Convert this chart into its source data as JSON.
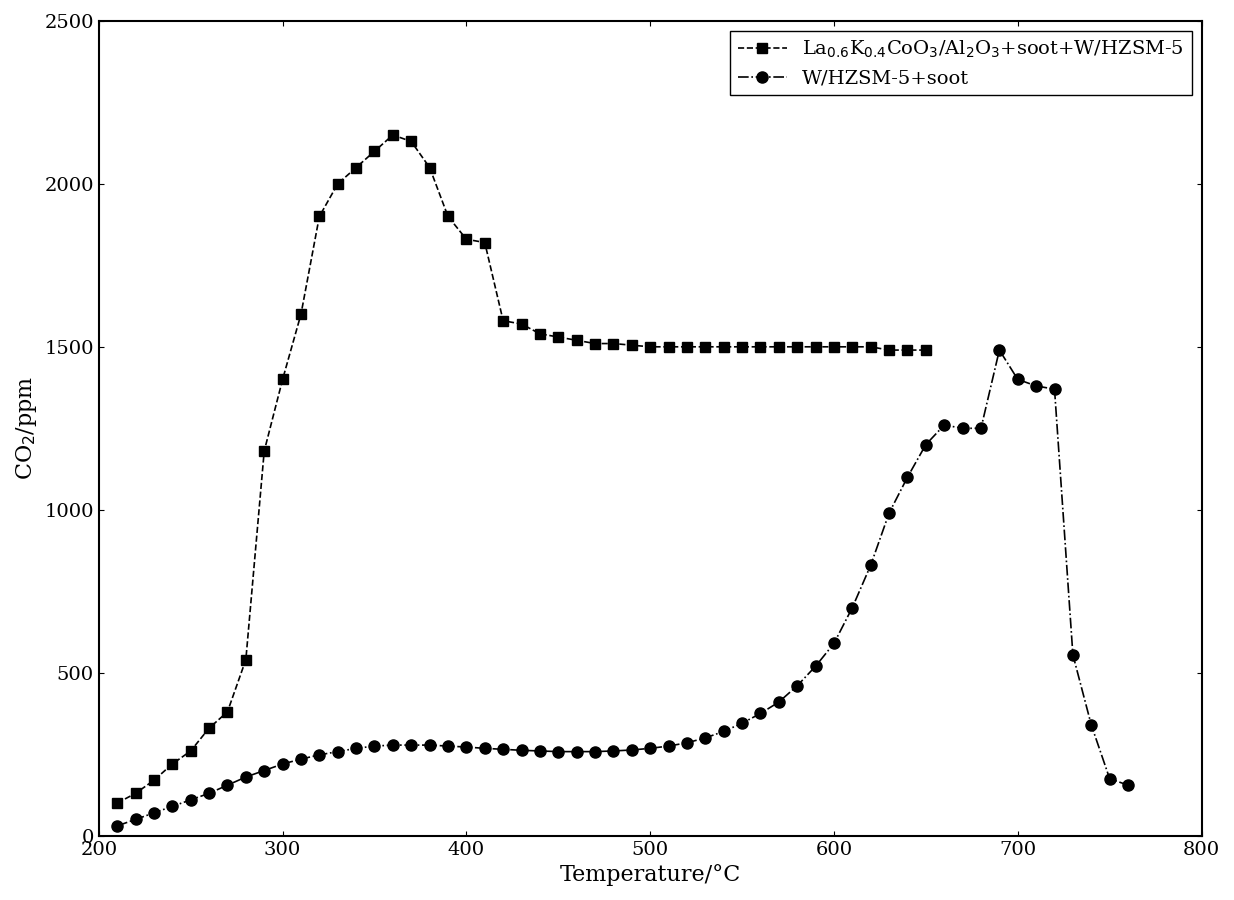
{
  "series1_label": "La$_{0.6}$K$_{0.4}$CoO$_3$/Al$_2$O$_3$+soot+W/HZSM-5",
  "series1_x": [
    210,
    220,
    230,
    240,
    250,
    260,
    270,
    280,
    290,
    300,
    310,
    320,
    330,
    340,
    350,
    360,
    370,
    380,
    390,
    400,
    410,
    420,
    430,
    440,
    450,
    460,
    470,
    480,
    490,
    500,
    510,
    520,
    530,
    540,
    550,
    560,
    570,
    580,
    590,
    600,
    610,
    620,
    630,
    640,
    650
  ],
  "series1_y": [
    100,
    130,
    170,
    220,
    260,
    330,
    380,
    540,
    1180,
    1400,
    1600,
    1900,
    2000,
    2050,
    2100,
    2150,
    2130,
    2050,
    1900,
    1830,
    1820,
    1580,
    1570,
    1540,
    1530,
    1520,
    1510,
    1510,
    1505,
    1500,
    1500,
    1500,
    1500,
    1500,
    1500,
    1500,
    1500,
    1500,
    1500,
    1500,
    1500,
    1500,
    1490,
    1490,
    1490
  ],
  "series2_label": "W/HZSM-5+soot",
  "series2_x": [
    210,
    220,
    230,
    240,
    250,
    260,
    270,
    280,
    290,
    300,
    310,
    320,
    330,
    340,
    350,
    360,
    370,
    380,
    390,
    400,
    410,
    420,
    430,
    440,
    450,
    460,
    470,
    480,
    490,
    500,
    510,
    520,
    530,
    540,
    550,
    560,
    570,
    580,
    590,
    600,
    610,
    620,
    630,
    640,
    650,
    660,
    670,
    680,
    690,
    700,
    710,
    720,
    730,
    740,
    750,
    760
  ],
  "series2_y": [
    30,
    50,
    70,
    90,
    110,
    130,
    155,
    180,
    200,
    220,
    235,
    248,
    258,
    268,
    275,
    278,
    278,
    278,
    275,
    272,
    268,
    265,
    262,
    260,
    258,
    258,
    258,
    260,
    263,
    268,
    275,
    285,
    300,
    320,
    345,
    375,
    410,
    460,
    520,
    590,
    700,
    830,
    990,
    1100,
    1200,
    1260,
    1250,
    1250,
    1490,
    1400,
    1380,
    1370,
    555,
    340,
    175,
    155
  ],
  "xlim": [
    200,
    800
  ],
  "ylim": [
    0,
    2500
  ],
  "xlabel": "Temperature/°C",
  "ylabel": "CO$_2$/ppm",
  "xticks": [
    200,
    300,
    400,
    500,
    600,
    700,
    800
  ],
  "yticks": [
    0,
    500,
    1000,
    1500,
    2000,
    2500
  ],
  "line_color": "#000000",
  "marker_color": "#000000",
  "background_color": "#ffffff",
  "fontsize_axis_label": 16,
  "fontsize_tick": 14,
  "fontsize_legend": 14
}
